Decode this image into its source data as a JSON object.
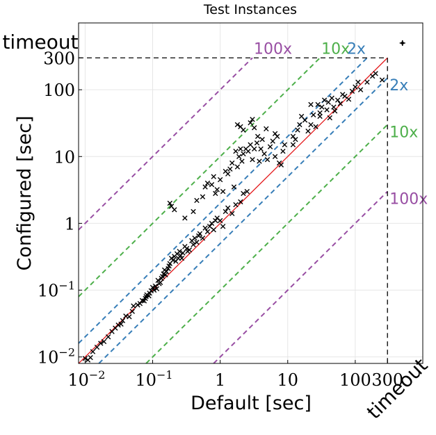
{
  "chart_data": {
    "type": "scatter",
    "title": "Test Instances",
    "xlabel": "Default [sec]",
    "ylabel": "Configured [sec]",
    "scale": "log",
    "xlim": [
      0.008,
      1000
    ],
    "ylim": [
      0.008,
      1000
    ],
    "grid": true,
    "timeout_value": 300,
    "timeout_label": "timeout",
    "x_ticks": [
      {
        "value": 0.01,
        "label": "10",
        "exp": "−2"
      },
      {
        "value": 0.1,
        "label": "10",
        "exp": "−1"
      },
      {
        "value": 1,
        "label": "1",
        "exp": ""
      },
      {
        "value": 10,
        "label": "10",
        "exp": ""
      },
      {
        "value": 100,
        "label": "100",
        "exp": ""
      },
      {
        "value": 300,
        "label": "300",
        "exp": ""
      }
    ],
    "y_ticks": [
      {
        "value": 0.01,
        "label": "10",
        "exp": "−2"
      },
      {
        "value": 0.1,
        "label": "10",
        "exp": "−1"
      },
      {
        "value": 1,
        "label": "1",
        "exp": ""
      },
      {
        "value": 10,
        "label": "10",
        "exp": ""
      },
      {
        "value": 100,
        "label": "100",
        "exp": ""
      },
      {
        "value": 300,
        "label": "300",
        "exp": ""
      }
    ],
    "reference_lines": [
      {
        "factor": 100,
        "label": "100x",
        "color": "#984ea3"
      },
      {
        "factor": 10,
        "label": "10x",
        "color": "#4daf4a"
      },
      {
        "factor": 2,
        "label": "2x",
        "color": "#377eb8"
      },
      {
        "factor": 0.5,
        "label": "2x",
        "color": "#377eb8"
      },
      {
        "factor": 0.1,
        "label": "10x",
        "color": "#4daf4a"
      },
      {
        "factor": 0.01,
        "label": "100x",
        "color": "#984ea3"
      }
    ],
    "diagonal_color": "#e41a1c",
    "timeout_points": [
      [
        500,
        500
      ]
    ],
    "points": [
      [
        0.01,
        0.0095
      ],
      [
        0.011,
        0.009
      ],
      [
        0.012,
        0.0098
      ],
      [
        0.013,
        0.012
      ],
      [
        0.015,
        0.014
      ],
      [
        0.017,
        0.016
      ],
      [
        0.019,
        0.017
      ],
      [
        0.022,
        0.02
      ],
      [
        0.025,
        0.024
      ],
      [
        0.028,
        0.027
      ],
      [
        0.031,
        0.03
      ],
      [
        0.034,
        0.031
      ],
      [
        0.036,
        0.035
      ],
      [
        0.04,
        0.041
      ],
      [
        0.045,
        0.04
      ],
      [
        0.05,
        0.048
      ],
      [
        0.052,
        0.058
      ],
      [
        0.06,
        0.06
      ],
      [
        0.065,
        0.063
      ],
      [
        0.07,
        0.07
      ],
      [
        0.075,
        0.069
      ],
      [
        0.078,
        0.075
      ],
      [
        0.08,
        0.08
      ],
      [
        0.082,
        0.085
      ],
      [
        0.088,
        0.082
      ],
      [
        0.09,
        0.09
      ],
      [
        0.095,
        0.098
      ],
      [
        0.1,
        0.11
      ],
      [
        0.105,
        0.1
      ],
      [
        0.11,
        0.115
      ],
      [
        0.115,
        0.105
      ],
      [
        0.12,
        0.14
      ],
      [
        0.125,
        0.125
      ],
      [
        0.13,
        0.13
      ],
      [
        0.135,
        0.15
      ],
      [
        0.14,
        0.16
      ],
      [
        0.145,
        0.175
      ],
      [
        0.15,
        0.2
      ],
      [
        0.155,
        0.17
      ],
      [
        0.16,
        0.19
      ],
      [
        0.17,
        0.21
      ],
      [
        0.175,
        0.23
      ],
      [
        0.18,
        0.25
      ],
      [
        0.19,
        0.3
      ],
      [
        0.2,
        0.28
      ],
      [
        0.21,
        0.32
      ],
      [
        0.22,
        0.27
      ],
      [
        0.23,
        0.35
      ],
      [
        0.24,
        0.3
      ],
      [
        0.25,
        0.38
      ],
      [
        0.26,
        0.33
      ],
      [
        0.27,
        0.3
      ],
      [
        0.28,
        0.36
      ],
      [
        0.3,
        0.45
      ],
      [
        0.32,
        0.42
      ],
      [
        0.33,
        0.38
      ],
      [
        0.35,
        0.4
      ],
      [
        0.38,
        0.55
      ],
      [
        0.4,
        0.48
      ],
      [
        0.42,
        0.6
      ],
      [
        0.45,
        0.52
      ],
      [
        0.48,
        0.65
      ],
      [
        0.5,
        0.7
      ],
      [
        0.55,
        0.6
      ],
      [
        0.6,
        0.85
      ],
      [
        0.65,
        0.75
      ],
      [
        0.7,
        0.9
      ],
      [
        0.75,
        1.0
      ],
      [
        0.8,
        0.8
      ],
      [
        0.85,
        1.1
      ],
      [
        0.9,
        1.2
      ],
      [
        1.0,
        1.1
      ],
      [
        1.1,
        0.9
      ],
      [
        1.2,
        1.5
      ],
      [
        1.3,
        1.7
      ],
      [
        1.5,
        1.4
      ],
      [
        1.7,
        1.9
      ],
      [
        2.0,
        2.1
      ],
      [
        2.2,
        2.8
      ],
      [
        2.5,
        3.0
      ],
      [
        0.18,
        2.0
      ],
      [
        0.19,
        1.8
      ],
      [
        0.21,
        1.6
      ],
      [
        0.3,
        1.2
      ],
      [
        0.4,
        1.5
      ],
      [
        0.45,
        2.2
      ],
      [
        0.55,
        2.5
      ],
      [
        0.6,
        3.5
      ],
      [
        0.65,
        4.0
      ],
      [
        0.75,
        3.8
      ],
      [
        0.8,
        5.0
      ],
      [
        0.85,
        2.8
      ],
      [
        0.9,
        3.2
      ],
      [
        1.0,
        4.5
      ],
      [
        1.1,
        3.0
      ],
      [
        1.2,
        6.0
      ],
      [
        1.3,
        5.5
      ],
      [
        1.4,
        6.5
      ],
      [
        1.5,
        8.0
      ],
      [
        1.6,
        3.5
      ],
      [
        1.7,
        12.0
      ],
      [
        1.8,
        7.0
      ],
      [
        1.9,
        10.0
      ],
      [
        2.0,
        13.0
      ],
      [
        2.1,
        8.5
      ],
      [
        2.2,
        11.0
      ],
      [
        2.4,
        13.0
      ],
      [
        2.6,
        12.0
      ],
      [
        2.8,
        15.0
      ],
      [
        3.0,
        9.0
      ],
      [
        3.2,
        13.0
      ],
      [
        3.5,
        16.0
      ],
      [
        3.8,
        8.5
      ],
      [
        4.0,
        13.0
      ],
      [
        4.2,
        18.0
      ],
      [
        4.5,
        11.0
      ],
      [
        5.0,
        9.0
      ],
      [
        5.5,
        14.0
      ],
      [
        6.0,
        17.0
      ],
      [
        6.5,
        10.0
      ],
      [
        7.0,
        20.0
      ],
      [
        7.5,
        8.0
      ],
      [
        8.0,
        7.5
      ],
      [
        8.5,
        12.0
      ],
      [
        9.0,
        15.0
      ],
      [
        1.8,
        30.0
      ],
      [
        2.0,
        28.0
      ],
      [
        2.2,
        25.0
      ],
      [
        2.8,
        32.0
      ],
      [
        3.0,
        36.0
      ],
      [
        3.2,
        27.0
      ],
      [
        12.0,
        20.0
      ],
      [
        13.0,
        18.0
      ],
      [
        14.0,
        25.0
      ],
      [
        15.0,
        30.0
      ],
      [
        16.0,
        40.0
      ],
      [
        18.0,
        35.0
      ],
      [
        20.0,
        24.0
      ],
      [
        22.0,
        30.0
      ],
      [
        24.0,
        42.0
      ],
      [
        26.0,
        28.0
      ],
      [
        28.0,
        60.0
      ],
      [
        30.0,
        45.0
      ],
      [
        32.0,
        55.0
      ],
      [
        35.0,
        70.0
      ],
      [
        38.0,
        50.0
      ],
      [
        40.0,
        65.0
      ],
      [
        42.0,
        38.0
      ],
      [
        45.0,
        75.0
      ],
      [
        48.0,
        55.0
      ],
      [
        50.0,
        48.0
      ],
      [
        55.0,
        70.0
      ],
      [
        60.0,
        62.0
      ],
      [
        70.0,
        80.0
      ],
      [
        80.0,
        72.0
      ],
      [
        90.0,
        95.0
      ],
      [
        100.0,
        110.0
      ],
      [
        120.0,
        100.0
      ],
      [
        150.0,
        130.0
      ],
      [
        180.0,
        160.0
      ],
      [
        200.0,
        175.0
      ],
      [
        250.0,
        140.0
      ],
      [
        22.0,
        60.0
      ],
      [
        12.0,
        15.0
      ],
      [
        6.5,
        22.0
      ],
      [
        4.8,
        26.0
      ],
      [
        3.6,
        20.0
      ],
      [
        30.0,
        40.0
      ],
      [
        65.0,
        85.0
      ],
      [
        110.0,
        130.0
      ]
    ]
  }
}
